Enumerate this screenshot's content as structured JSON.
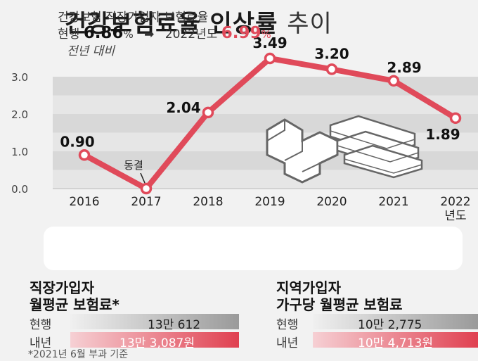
{
  "title": "건강보험료율 인상률",
  "title_suffix": "추이",
  "subtitle": "전년 대비",
  "chart_data": {
    "type": "line",
    "categories": [
      "2016",
      "2017",
      "2018",
      "2019",
      "2020",
      "2021",
      "2022"
    ],
    "last_category_suffix": "년도",
    "values": [
      0.9,
      0.0,
      2.04,
      3.49,
      3.2,
      2.89,
      1.89
    ],
    "value_labels": [
      "0.90",
      "",
      "2.04",
      "3.49",
      "3.20",
      "2.89",
      "1.89"
    ],
    "annotation": "동결",
    "y_ticks": [
      "0.0",
      "1.0",
      "2.0",
      "3.0"
    ],
    "ylim": [
      0,
      3.5
    ],
    "color": "#e04a5a"
  },
  "info": {
    "title": "건강보험 직장가입자 보험료율",
    "current_label": "현행",
    "current_value": "6.86",
    "percent": "%",
    "arrow": "➡",
    "next_label": "2022년도",
    "next_value": "6.99"
  },
  "employee": {
    "title_line1": "직장가입자",
    "title_line2": "월평균 보험료*",
    "current_label": "현행",
    "current_value": "13만 612",
    "next_label": "내년",
    "next_value": "13만 3,087원"
  },
  "regional": {
    "title_line1": "지역가입자",
    "title_line2": "가구당 월평균 보험료",
    "current_label": "현행",
    "current_value": "10만 2,775",
    "next_label": "내년",
    "next_value": "10만 4,713원"
  },
  "footnote": "*2021년 6월 부과 기준"
}
